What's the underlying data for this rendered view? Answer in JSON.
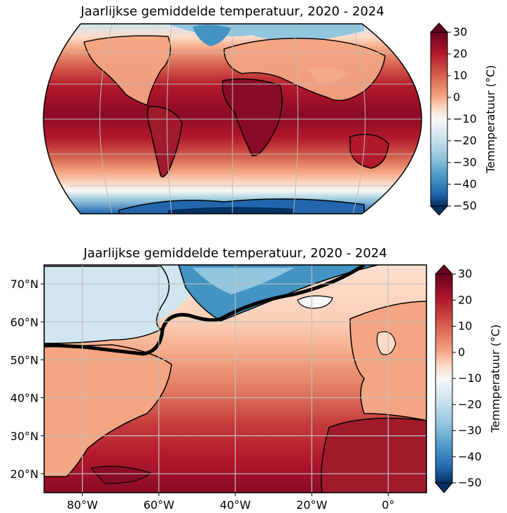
{
  "maps": [
    {
      "title": "Jaarlijkse gemiddelde temperatuur, 2020 - 2024",
      "projection": "Robinson (global)",
      "colorbar": {
        "label": "Temmperatuur (°C)",
        "min": -50,
        "max": 30,
        "ticks": [
          "30",
          "20",
          "10",
          "0",
          "−10",
          "−20",
          "−30",
          "−40",
          "−50"
        ],
        "colormap": "RdBu_r"
      }
    },
    {
      "title": "Jaarlijkse gemiddelde temperatuur, 2020 - 2024",
      "projection": "PlateCarree (North Atlantic)",
      "lon_range": [
        -90,
        10
      ],
      "lat_range": [
        15,
        75
      ],
      "x_ticks": [
        "80°W",
        "60°W",
        "40°W",
        "20°W",
        "0°"
      ],
      "y_ticks": [
        "70°N",
        "60°N",
        "50°N",
        "40°N",
        "30°N",
        "20°N"
      ],
      "colorbar": {
        "label": "Temmperatuur (°C)",
        "min": -50,
        "max": 30,
        "ticks": [
          "30",
          "20",
          "10",
          "0",
          "−10",
          "−20",
          "−30",
          "−40",
          "−50"
        ],
        "colormap": "RdBu_r"
      }
    }
  ],
  "colors": {
    "hot": "#67001f",
    "warm": "#b2182b",
    "mild": "#f4a582",
    "neutral": "#f7f7f7",
    "cool": "#92c5de",
    "cold": "#2166ac",
    "frigid": "#053061"
  }
}
